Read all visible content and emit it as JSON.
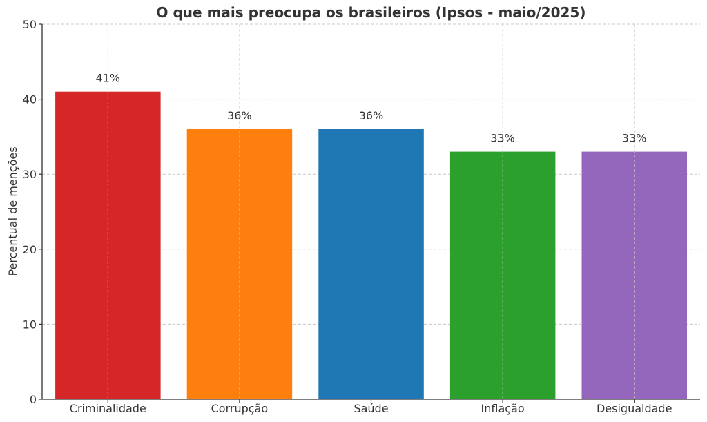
{
  "chart_data": {
    "type": "bar",
    "title": "O que mais preocupa os brasileiros (Ipsos - maio/2025)",
    "xlabel": "",
    "ylabel": "Percentual de menções",
    "ylim": [
      0,
      50
    ],
    "yticks": [
      0,
      10,
      20,
      30,
      40,
      50
    ],
    "grid": true,
    "categories": [
      "Criminalidade",
      "Corrupção",
      "Saúde",
      "Inflação",
      "Desigualdade"
    ],
    "values": [
      41,
      36,
      36,
      33,
      33
    ],
    "data_labels": [
      "41%",
      "36%",
      "36%",
      "33%",
      "33%"
    ],
    "colors": [
      "#d62728",
      "#ff7f0e",
      "#1f77b4",
      "#2ca02c",
      "#9467bd"
    ]
  }
}
